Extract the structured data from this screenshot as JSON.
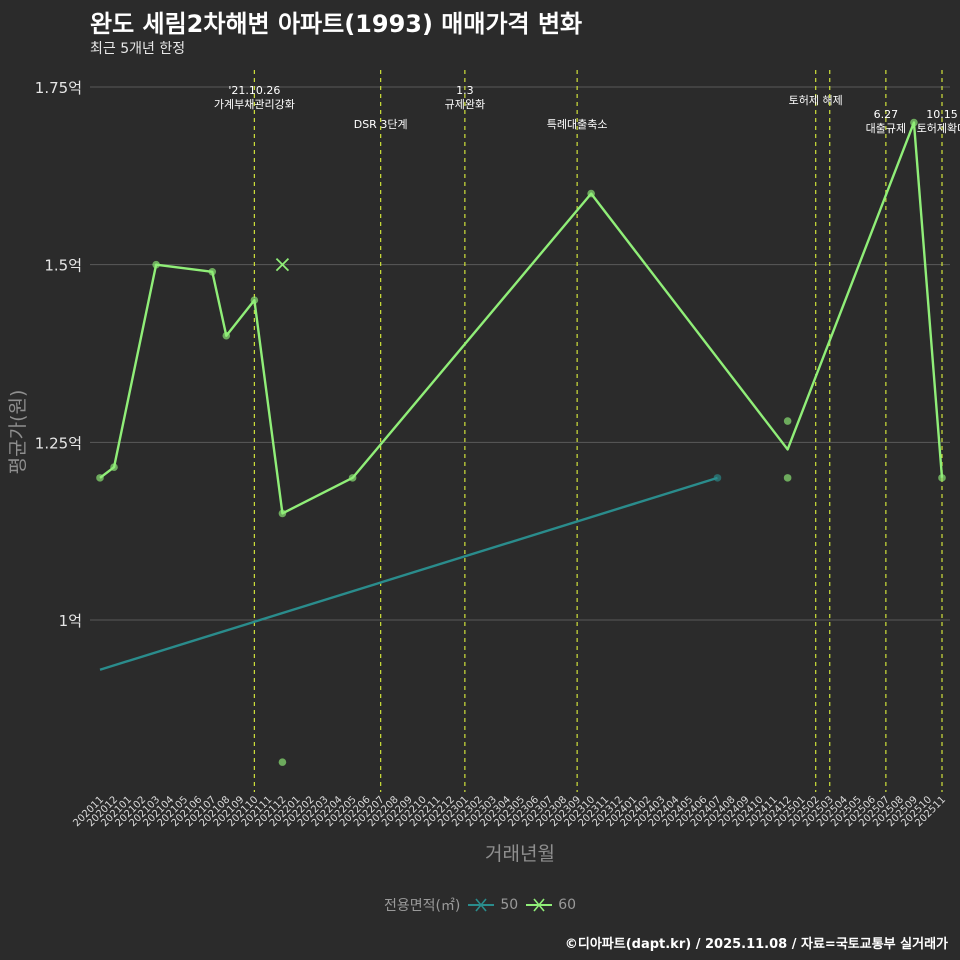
{
  "title": "완도 세림2차해변 아파트(1993) 매매가격 변화",
  "subtitle": "최근 5개년 한정",
  "caption": "©디아파트(dapt.kr) / 2025.11.08 / 자료=국토교통부 실거래가",
  "colors": {
    "background": "#2b2b2b",
    "grid": "#5a5a5a",
    "series_50": "#2a8c8c",
    "series_60": "#90ee78",
    "event_line": "#cfe23a",
    "text": "#ffffff",
    "muted": "#9a9a9a"
  },
  "chart_data": {
    "type": "line",
    "title": "완도 세림2차해변 아파트(1993) 매매가격 변화",
    "xlabel": "거래년월",
    "ylabel": "평균가(원)",
    "ylim": [
      0.75,
      1.8
    ],
    "yticks": [
      1.0,
      1.25,
      1.5,
      1.75
    ],
    "ytick_labels": [
      "1억",
      "1.25억",
      "1.5억",
      "1.75억"
    ],
    "categories": [
      "202011",
      "202012",
      "202101",
      "202102",
      "202103",
      "202104",
      "202105",
      "202106",
      "202107",
      "202108",
      "202109",
      "202110",
      "202111",
      "202112",
      "202201",
      "202202",
      "202203",
      "202204",
      "202205",
      "202206",
      "202207",
      "202208",
      "202209",
      "202210",
      "202211",
      "202212",
      "202301",
      "202302",
      "202303",
      "202304",
      "202305",
      "202306",
      "202307",
      "202308",
      "202309",
      "202310",
      "202311",
      "202312",
      "202401",
      "202402",
      "202403",
      "202404",
      "202405",
      "202406",
      "202407",
      "202408",
      "202409",
      "202410",
      "202411",
      "202412",
      "202501",
      "202502",
      "202503",
      "202504",
      "202505",
      "202506",
      "202507",
      "202508",
      "202509",
      "202510",
      "202511"
    ],
    "series": [
      {
        "name": "50",
        "marker": "x",
        "line": [
          [
            "202011",
            0.93
          ],
          [
            "202407",
            1.2
          ]
        ],
        "points": [
          [
            "202407",
            1.2
          ]
        ]
      },
      {
        "name": "60",
        "marker": "x",
        "line": [
          [
            "202011",
            1.2
          ],
          [
            "202012",
            1.215
          ],
          [
            "202103",
            1.5
          ],
          [
            "202107",
            1.49
          ],
          [
            "202108",
            1.4
          ],
          [
            "202110",
            1.45
          ],
          [
            "202112",
            1.15
          ],
          [
            "202205",
            1.2
          ],
          [
            "202310",
            1.6
          ],
          [
            "202412",
            1.24
          ],
          [
            "202509",
            1.7
          ],
          [
            "202511",
            1.2
          ]
        ],
        "points": [
          [
            "202011",
            1.2
          ],
          [
            "202012",
            1.215
          ],
          [
            "202103",
            1.5
          ],
          [
            "202107",
            1.49
          ],
          [
            "202108",
            1.4
          ],
          [
            "202110",
            1.45
          ],
          [
            "202112",
            1.15
          ],
          [
            "202112",
            0.8
          ],
          [
            "202205",
            1.2
          ],
          [
            "202310",
            1.6
          ],
          [
            "202412",
            1.28
          ],
          [
            "202412",
            1.2
          ],
          [
            "202509",
            1.7
          ],
          [
            "202511",
            1.2
          ]
        ],
        "cross_points": [
          [
            "202112",
            1.5
          ]
        ]
      }
    ],
    "events": [
      {
        "x": "202110",
        "lines": [
          "'21.10.26",
          "가계부채관리강화"
        ],
        "level": 0
      },
      {
        "x": "202207",
        "lines": [
          "DSR 3단계"
        ],
        "level": 2
      },
      {
        "x": "202301",
        "lines": [
          "1.3",
          "규제완화"
        ],
        "level": 0
      },
      {
        "x": "202309",
        "lines": [
          "특례대출축소"
        ],
        "level": 2
      },
      {
        "x": "202502",
        "lines": [
          "토허제 해제"
        ],
        "level": 1
      },
      {
        "x": "202503",
        "lines": [],
        "level": 1
      },
      {
        "x": "202507",
        "lines": [
          "6.27",
          "대출규제"
        ],
        "level": 3
      },
      {
        "x": "202511",
        "lines": [
          "10.15",
          "토허제확대"
        ],
        "level": 3
      }
    ]
  },
  "legend": {
    "title": "전용면적(㎡)",
    "items": [
      {
        "label": "50",
        "color": "#2a8c8c"
      },
      {
        "label": "60",
        "color": "#90ee78"
      }
    ]
  }
}
